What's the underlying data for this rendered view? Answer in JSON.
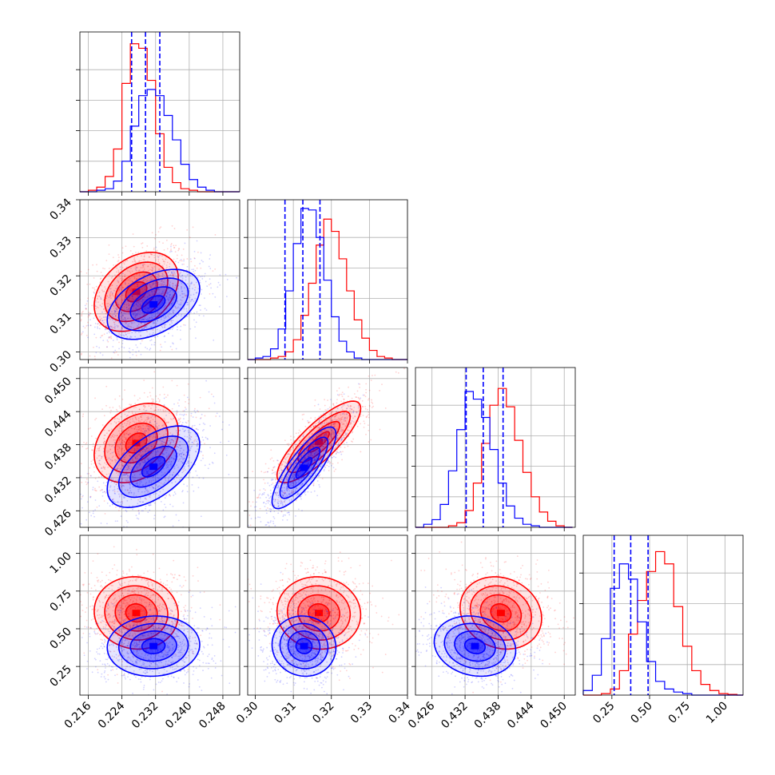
{
  "chart_data": {
    "type": "corner",
    "grid": true,
    "series": [
      {
        "color": "#ff0000"
      },
      {
        "color": "#0000ff"
      }
    ],
    "quantile_line_color": "#0000ff",
    "parameters": [
      {
        "range": [
          0.214,
          0.252
        ],
        "ticks": [
          0.216,
          0.224,
          0.232,
          0.24,
          0.248
        ],
        "tick_labels": [
          "0.216",
          "0.224",
          "0.232",
          "0.240",
          "0.248"
        ]
      },
      {
        "range": [
          0.298,
          0.34
        ],
        "ticks": [
          0.3,
          0.31,
          0.32,
          0.33,
          0.34
        ],
        "tick_labels": [
          "0.30",
          "0.31",
          "0.32",
          "0.33",
          "0.34"
        ]
      },
      {
        "range": [
          0.423,
          0.452
        ],
        "ticks": [
          0.426,
          0.432,
          0.438,
          0.444,
          0.45
        ],
        "tick_labels": [
          "0.426",
          "0.432",
          "0.438",
          "0.444",
          "0.450"
        ]
      },
      {
        "range": [
          0.06,
          1.12
        ],
        "ticks": [
          0.25,
          0.5,
          0.75,
          1.0
        ],
        "tick_labels": [
          "0.25",
          "0.50",
          "0.75",
          "1.00"
        ]
      }
    ],
    "diagonal_histograms": [
      {
        "bins": [
          0.214,
          0.216,
          0.218,
          0.22,
          0.222,
          0.224,
          0.226,
          0.228,
          0.23,
          0.232,
          0.234,
          0.236,
          0.238,
          0.24,
          0.242,
          0.244,
          0.246,
          0.248,
          0.25,
          0.252
        ],
        "red": [
          0,
          0.01,
          0.03,
          0.1,
          0.28,
          0.71,
          0.97,
          0.94,
          0.73,
          0.38,
          0.16,
          0.06,
          0.02,
          0.01,
          0,
          0,
          0,
          0,
          0
        ],
        "blue": [
          0,
          0,
          0.01,
          0.02,
          0.07,
          0.2,
          0.43,
          0.63,
          0.67,
          0.63,
          0.5,
          0.34,
          0.18,
          0.08,
          0.03,
          0.01,
          0,
          0,
          0
        ],
        "quantiles": [
          0.2263,
          0.2296,
          0.233
        ]
      },
      {
        "bins": [
          0.298,
          0.3,
          0.302,
          0.304,
          0.306,
          0.308,
          0.31,
          0.312,
          0.314,
          0.316,
          0.318,
          0.32,
          0.322,
          0.324,
          0.326,
          0.328,
          0.33,
          0.332,
          0.334,
          0.336,
          0.338,
          0.34
        ],
        "red": [
          0,
          0,
          0,
          0.01,
          0.02,
          0.05,
          0.13,
          0.29,
          0.5,
          0.75,
          0.92,
          0.84,
          0.66,
          0.45,
          0.26,
          0.14,
          0.06,
          0.02,
          0.01,
          0,
          0
        ],
        "blue": [
          0,
          0.01,
          0.02,
          0.07,
          0.2,
          0.45,
          0.76,
          0.99,
          0.98,
          0.8,
          0.52,
          0.28,
          0.12,
          0.05,
          0.01,
          0,
          0,
          0,
          0,
          0,
          0
        ],
        "quantiles": [
          0.3078,
          0.3125,
          0.317
        ]
      },
      {
        "bins": [
          0.423,
          0.4245,
          0.426,
          0.4275,
          0.429,
          0.4305,
          0.432,
          0.4335,
          0.435,
          0.4365,
          0.438,
          0.4395,
          0.441,
          0.4425,
          0.444,
          0.4455,
          0.447,
          0.4485,
          0.45,
          0.4515
        ],
        "red": [
          0,
          0,
          0,
          0,
          0.01,
          0.03,
          0.11,
          0.29,
          0.55,
          0.8,
          0.91,
          0.79,
          0.57,
          0.36,
          0.2,
          0.1,
          0.04,
          0.01,
          0
        ],
        "blue": [
          0,
          0.02,
          0.05,
          0.15,
          0.37,
          0.64,
          0.89,
          0.84,
          0.72,
          0.51,
          0.29,
          0.14,
          0.06,
          0.02,
          0.01,
          0,
          0,
          0,
          0
        ],
        "quantiles": [
          0.4322,
          0.4353,
          0.4389
        ]
      },
      {
        "bins": [
          0.06,
          0.12,
          0.18,
          0.24,
          0.3,
          0.36,
          0.42,
          0.48,
          0.54,
          0.6,
          0.66,
          0.72,
          0.78,
          0.84,
          0.9,
          0.96,
          1.02,
          1.08,
          1.12
        ],
        "red": [
          0,
          0,
          0.01,
          0.04,
          0.16,
          0.4,
          0.62,
          0.81,
          0.94,
          0.86,
          0.58,
          0.32,
          0.16,
          0.07,
          0.03,
          0.01,
          0.005,
          0
        ],
        "blue": [
          0.03,
          0.13,
          0.37,
          0.7,
          0.86,
          0.76,
          0.48,
          0.22,
          0.09,
          0.04,
          0.02,
          0.01,
          0,
          0,
          0,
          0,
          0,
          0
        ],
        "quantiles": [
          0.265,
          0.375,
          0.49
        ]
      }
    ],
    "pair_modes": {
      "1_0": {
        "red": {
          "mean": [
            0.2274,
            0.3158
          ],
          "std": [
            0.005,
            0.0052
          ],
          "corr": 0.35
        },
        "blue": {
          "mean": [
            0.2315,
            0.3125
          ],
          "std": [
            0.0055,
            0.0046
          ],
          "corr": 0.45
        }
      },
      "2_0": {
        "red": {
          "mean": [
            0.2274,
            0.4383
          ],
          "std": [
            0.005,
            0.0036
          ],
          "corr": 0.3
        },
        "blue": {
          "mean": [
            0.2315,
            0.434
          ],
          "std": [
            0.0055,
            0.0037
          ],
          "corr": 0.55
        }
      },
      "2_1": {
        "red": {
          "mean": [
            0.3167,
            0.4385
          ],
          "std": [
            0.0055,
            0.0037
          ],
          "corr": 0.82
        },
        "blue": {
          "mean": [
            0.3128,
            0.4338
          ],
          "std": [
            0.0042,
            0.0037
          ],
          "corr": 0.82
        }
      },
      "3_0": {
        "red": {
          "mean": [
            0.2274,
            0.605
          ],
          "std": [
            0.005,
            0.12
          ],
          "corr": -0.05
        },
        "blue": {
          "mean": [
            0.2315,
            0.385
          ],
          "std": [
            0.0055,
            0.1
          ],
          "corr": 0.05
        }
      },
      "3_1": {
        "red": {
          "mean": [
            0.3167,
            0.605
          ],
          "std": [
            0.0055,
            0.12
          ],
          "corr": -0.05
        },
        "blue": {
          "mean": [
            0.3128,
            0.385
          ],
          "std": [
            0.0042,
            0.1
          ],
          "corr": -0.05
        }
      },
      "3_2": {
        "red": {
          "mean": [
            0.4385,
            0.605
          ],
          "std": [
            0.0037,
            0.12
          ],
          "corr": -0.15
        },
        "blue": {
          "mean": [
            0.4338,
            0.385
          ],
          "std": [
            0.0037,
            0.1
          ],
          "corr": -0.15
        }
      }
    }
  }
}
